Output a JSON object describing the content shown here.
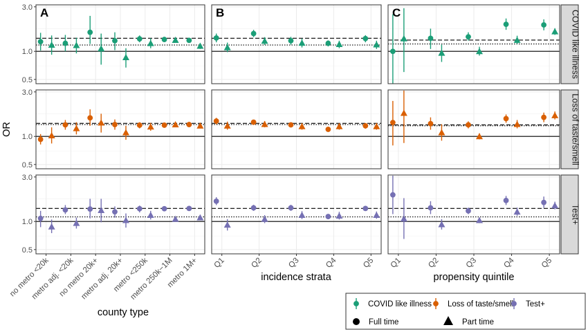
{
  "chart_data": {
    "type": "scatter",
    "ylabel": "OR",
    "yscale": "log",
    "ylim": [
      0.45,
      3.15
    ],
    "yticks": [
      {
        "value": 0.5,
        "label": "0.5"
      },
      {
        "value": 1.0,
        "label": "1.0"
      },
      {
        "value": 3.0,
        "label": "3.0"
      }
    ],
    "reference_lines": [
      {
        "value": 1.0,
        "style": "solid"
      }
    ],
    "outcomes": [
      {
        "key": "covid",
        "label": "COVID like illness",
        "color": "#1b9e77"
      },
      {
        "key": "taste",
        "label": "Loss of taste/smell",
        "color": "#d95f02"
      },
      {
        "key": "testpos",
        "label": "Test+",
        "color": "#7570b3"
      }
    ],
    "columns": [
      {
        "letter": "A",
        "xlabel": "county type",
        "categories": [
          "no metro <20k",
          "metro adj. <20k",
          "no metro 20k+",
          "metro adj. 20k+",
          "metro <250k",
          "metro 250k−1M",
          "metro 1M+"
        ]
      },
      {
        "letter": "B",
        "xlabel": "incidence strata",
        "categories": [
          "Q1",
          "Q2",
          "Q3",
          "Q4",
          "Q5"
        ]
      },
      {
        "letter": "C",
        "xlabel": "propensity quintile",
        "categories": [
          "Q1",
          "Q2",
          "Q3",
          "Q4",
          "Q5"
        ]
      }
    ],
    "panels": [
      {
        "col": 0,
        "row": 0,
        "dashed": 1.38,
        "dotted": 1.17,
        "full": [
          {
            "y": 1.27,
            "lo": 1.02,
            "hi": 1.58
          },
          {
            "y": 1.22,
            "lo": 1.0,
            "hi": 1.5
          },
          {
            "y": 1.6,
            "lo": 1.2,
            "hi": 2.4
          },
          {
            "y": 1.3,
            "lo": 1.03,
            "hi": 1.6
          },
          {
            "y": 1.36,
            "lo": 1.25,
            "hi": 1.48
          },
          {
            "y": 1.34,
            "lo": 1.27,
            "hi": 1.42
          },
          {
            "y": 1.31,
            "lo": 1.25,
            "hi": 1.38
          }
        ],
        "part": [
          {
            "y": 1.17,
            "lo": 0.92,
            "hi": 1.48
          },
          {
            "y": 1.16,
            "lo": 0.95,
            "hi": 1.4
          },
          {
            "y": 1.07,
            "lo": 0.72,
            "hi": 1.55
          },
          {
            "y": 0.86,
            "lo": 0.67,
            "hi": 1.08
          },
          {
            "y": 1.22,
            "lo": 1.08,
            "hi": 1.38
          },
          {
            "y": 1.32,
            "lo": 1.24,
            "hi": 1.42
          },
          {
            "y": 1.14,
            "lo": 1.06,
            "hi": 1.22
          }
        ]
      },
      {
        "col": 1,
        "row": 0,
        "dashed": 1.38,
        "dotted": 1.17,
        "full": [
          {
            "y": 1.39,
            "lo": 1.25,
            "hi": 1.55
          },
          {
            "y": 1.55,
            "lo": 1.42,
            "hi": 1.7
          },
          {
            "y": 1.3,
            "lo": 1.18,
            "hi": 1.43
          },
          {
            "y": 1.22,
            "lo": 1.13,
            "hi": 1.31
          },
          {
            "y": 1.37,
            "lo": 1.25,
            "hi": 1.49
          }
        ],
        "part": [
          {
            "y": 1.1,
            "lo": 0.98,
            "hi": 1.24
          },
          {
            "y": 1.29,
            "lo": 1.17,
            "hi": 1.42
          },
          {
            "y": 1.23,
            "lo": 1.1,
            "hi": 1.37
          },
          {
            "y": 1.19,
            "lo": 1.08,
            "hi": 1.3
          },
          {
            "y": 1.18,
            "lo": 1.06,
            "hi": 1.3
          }
        ]
      },
      {
        "col": 2,
        "row": 0,
        "dashed": 1.32,
        "dotted": 1.2,
        "full": [
          {
            "y": 1.0,
            "lo": 0.45,
            "hi": 2.5
          },
          {
            "y": 1.38,
            "lo": 1.06,
            "hi": 1.75
          },
          {
            "y": 1.43,
            "lo": 1.3,
            "hi": 1.6
          },
          {
            "y": 1.95,
            "lo": 1.7,
            "hi": 2.25
          },
          {
            "y": 1.92,
            "lo": 1.68,
            "hi": 2.2
          }
        ],
        "part": [
          {
            "y": 1.37,
            "lo": 0.6,
            "hi": 2.9
          },
          {
            "y": 0.96,
            "lo": 0.77,
            "hi": 1.18
          },
          {
            "y": 1.0,
            "lo": 0.9,
            "hi": 1.12
          },
          {
            "y": 1.32,
            "lo": 1.2,
            "hi": 1.47
          },
          {
            "y": 1.63,
            "lo": 1.5,
            "hi": 1.77
          }
        ]
      },
      {
        "col": 0,
        "row": 1,
        "dashed": 1.38,
        "dotted": 1.34,
        "full": [
          {
            "y": 0.93,
            "lo": 0.82,
            "hi": 1.06
          },
          {
            "y": 1.33,
            "lo": 1.18,
            "hi": 1.5
          },
          {
            "y": 1.58,
            "lo": 1.3,
            "hi": 1.95
          },
          {
            "y": 1.34,
            "lo": 1.18,
            "hi": 1.52
          },
          {
            "y": 1.32,
            "lo": 1.22,
            "hi": 1.42
          },
          {
            "y": 1.32,
            "lo": 1.24,
            "hi": 1.4
          },
          {
            "y": 1.34,
            "lo": 1.28,
            "hi": 1.41
          }
        ],
        "part": [
          {
            "y": 1.02,
            "lo": 0.84,
            "hi": 1.25
          },
          {
            "y": 1.22,
            "lo": 1.05,
            "hi": 1.42
          },
          {
            "y": 1.4,
            "lo": 1.1,
            "hi": 1.75
          },
          {
            "y": 1.1,
            "lo": 0.92,
            "hi": 1.3
          },
          {
            "y": 1.27,
            "lo": 1.15,
            "hi": 1.4
          },
          {
            "y": 1.34,
            "lo": 1.26,
            "hi": 1.43
          },
          {
            "y": 1.3,
            "lo": 1.22,
            "hi": 1.38
          }
        ]
      },
      {
        "col": 1,
        "row": 1,
        "dashed": 1.38,
        "dotted": 1.34,
        "full": [
          {
            "y": 1.46,
            "lo": 1.35,
            "hi": 1.58
          },
          {
            "y": 1.42,
            "lo": 1.33,
            "hi": 1.51
          },
          {
            "y": 1.33,
            "lo": 1.25,
            "hi": 1.41
          },
          {
            "y": 1.19,
            "lo": 1.12,
            "hi": 1.27
          },
          {
            "y": 1.3,
            "lo": 1.21,
            "hi": 1.39
          }
        ],
        "part": [
          {
            "y": 1.3,
            "lo": 1.18,
            "hi": 1.44
          },
          {
            "y": 1.35,
            "lo": 1.25,
            "hi": 1.46
          },
          {
            "y": 1.28,
            "lo": 1.18,
            "hi": 1.39
          },
          {
            "y": 1.28,
            "lo": 1.18,
            "hi": 1.39
          },
          {
            "y": 1.28,
            "lo": 1.18,
            "hi": 1.39
          }
        ]
      },
      {
        "col": 2,
        "row": 1,
        "dashed": 1.33,
        "dotted": 1.3,
        "full": [
          {
            "y": 1.41,
            "lo": 0.8,
            "hi": 2.4
          },
          {
            "y": 1.37,
            "lo": 1.18,
            "hi": 1.6
          },
          {
            "y": 1.33,
            "lo": 1.22,
            "hi": 1.45
          },
          {
            "y": 1.55,
            "lo": 1.4,
            "hi": 1.72
          },
          {
            "y": 1.6,
            "lo": 1.42,
            "hi": 1.8
          }
        ],
        "part": [
          {
            "y": 1.78,
            "lo": 0.85,
            "hi": 3.1
          },
          {
            "y": 1.1,
            "lo": 0.9,
            "hi": 1.35
          },
          {
            "y": 1.0,
            "lo": 0.93,
            "hi": 1.08
          },
          {
            "y": 1.35,
            "lo": 1.22,
            "hi": 1.5
          },
          {
            "y": 1.68,
            "lo": 1.52,
            "hi": 1.85
          }
        ]
      },
      {
        "col": 0,
        "row": 2,
        "dashed": 1.38,
        "dotted": 1.12,
        "full": [
          {
            "y": 1.08,
            "lo": 0.87,
            "hi": 1.3
          },
          {
            "y": 1.33,
            "lo": 1.2,
            "hi": 1.5
          },
          {
            "y": 1.36,
            "lo": 1.08,
            "hi": 1.75
          },
          {
            "y": 1.27,
            "lo": 1.1,
            "hi": 1.45
          },
          {
            "y": 1.37,
            "lo": 1.25,
            "hi": 1.48
          },
          {
            "y": 1.37,
            "lo": 1.3,
            "hi": 1.44
          },
          {
            "y": 1.38,
            "lo": 1.33,
            "hi": 1.43
          }
        ],
        "part": [
          {
            "y": 0.88,
            "lo": 0.75,
            "hi": 1.05
          },
          {
            "y": 0.96,
            "lo": 0.84,
            "hi": 1.1
          },
          {
            "y": 1.32,
            "lo": 0.98,
            "hi": 1.75
          },
          {
            "y": 1.03,
            "lo": 0.86,
            "hi": 1.22
          },
          {
            "y": 1.17,
            "lo": 1.05,
            "hi": 1.3
          },
          {
            "y": 1.06,
            "lo": 1.01,
            "hi": 1.11
          },
          {
            "y": 1.1,
            "lo": 1.05,
            "hi": 1.16
          }
        ]
      },
      {
        "col": 1,
        "row": 2,
        "dashed": 1.38,
        "dotted": 1.12,
        "full": [
          {
            "y": 1.65,
            "lo": 1.5,
            "hi": 1.82
          },
          {
            "y": 1.4,
            "lo": 1.3,
            "hi": 1.51
          },
          {
            "y": 1.4,
            "lo": 1.3,
            "hi": 1.51
          },
          {
            "y": 1.13,
            "lo": 1.06,
            "hi": 1.2
          },
          {
            "y": 1.38,
            "lo": 1.3,
            "hi": 1.47
          }
        ],
        "part": [
          {
            "y": 0.92,
            "lo": 0.8,
            "hi": 1.06
          },
          {
            "y": 1.06,
            "lo": 0.96,
            "hi": 1.17
          },
          {
            "y": 1.17,
            "lo": 1.06,
            "hi": 1.29
          },
          {
            "y": 1.15,
            "lo": 1.05,
            "hi": 1.27
          },
          {
            "y": 1.17,
            "lo": 1.07,
            "hi": 1.28
          }
        ]
      },
      {
        "col": 2,
        "row": 2,
        "dashed": 1.38,
        "dotted": 1.12,
        "full": [
          {
            "y": 1.93,
            "lo": 1.2,
            "hi": 3.1
          },
          {
            "y": 1.4,
            "lo": 1.2,
            "hi": 1.65
          },
          {
            "y": 1.3,
            "lo": 1.2,
            "hi": 1.41
          },
          {
            "y": 1.68,
            "lo": 1.5,
            "hi": 1.88
          },
          {
            "y": 1.6,
            "lo": 1.4,
            "hi": 1.85
          }
        ],
        "part": [
          {
            "y": 1.07,
            "lo": 0.65,
            "hi": 1.78
          },
          {
            "y": 0.93,
            "lo": 0.82,
            "hi": 1.06
          },
          {
            "y": 1.03,
            "lo": 0.96,
            "hi": 1.1
          },
          {
            "y": 1.27,
            "lo": 1.15,
            "hi": 1.41
          },
          {
            "y": 1.48,
            "lo": 1.35,
            "hi": 1.63
          }
        ]
      }
    ],
    "legend": {
      "placement": "bottom-right",
      "outcomes": [
        "COVID like illness",
        "Loss of taste/smell",
        "Test+"
      ],
      "shapes": [
        {
          "label": "Full time",
          "shape": "circle"
        },
        {
          "label": "Part time",
          "shape": "triangle"
        }
      ]
    }
  }
}
